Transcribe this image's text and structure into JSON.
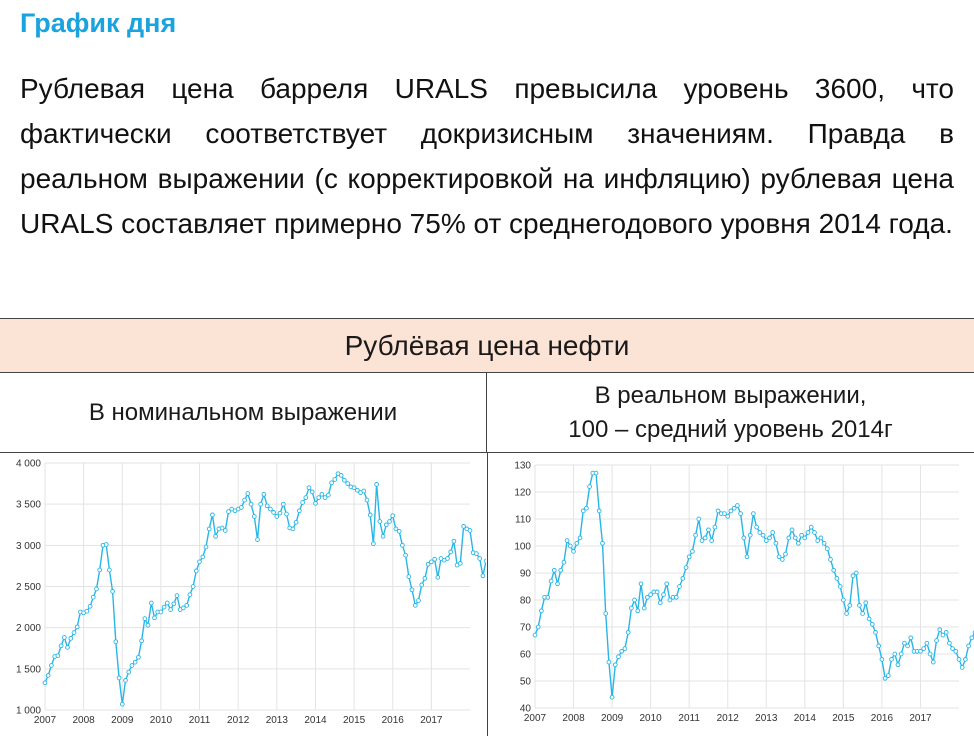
{
  "heading": "График дня",
  "lead": "Рублевая цена барреля URALS превысила уровень 3600, что фактически соответствует докризисным значениям. Правда в реальном выражении (с корректировкой на инфляцию) рублевая цена URALS составляет примерно 75% от среднегодового уровня 2014 года.",
  "table": {
    "title": "Рублёвая цена нефти",
    "left_header": "В номинальном выражении",
    "right_header_line1": "В реальном выражении,",
    "right_header_line2": "100 – средний уровень 2014г"
  },
  "colors": {
    "series": "#29b6e6",
    "grid": "#e3e3e3",
    "heading": "#1aa3dd",
    "table_header_bg": "#fbe3d6"
  },
  "chart_data": [
    {
      "type": "line",
      "ylim": [
        1000,
        4000
      ],
      "yticks": [
        1000,
        1500,
        2000,
        2500,
        3000,
        3500,
        4000
      ],
      "ytick_labels": [
        "1 000",
        "1 500",
        "2 000",
        "2 500",
        "3 000",
        "3 500",
        "4 000"
      ],
      "xlim": [
        2007,
        2018
      ],
      "xticks": [
        2007,
        2008,
        2009,
        2010,
        2011,
        2012,
        2013,
        2014,
        2015,
        2016,
        2017
      ],
      "xtick_labels": [
        "2007",
        "2008",
        "2009",
        "2010",
        "2011",
        "2012",
        "2013",
        "2014",
        "2015",
        "2016",
        "2017"
      ],
      "grid": true,
      "markers": "hollow circles",
      "x_start": "2007-01",
      "step": "month",
      "series": [
        {
          "values": [
            1330,
            1420,
            1540,
            1650,
            1660,
            1780,
            1880,
            1760,
            1870,
            1940,
            2010,
            2190,
            2180,
            2200,
            2260,
            2370,
            2470,
            2700,
            3000,
            3010,
            2700,
            2440,
            1830,
            1390,
            1070,
            1360,
            1460,
            1540,
            1580,
            1640,
            1840,
            2110,
            2030,
            2300,
            2120,
            2190,
            2190,
            2250,
            2300,
            2220,
            2290,
            2390,
            2220,
            2240,
            2270,
            2400,
            2500,
            2690,
            2800,
            2860,
            2980,
            3200,
            3370,
            3110,
            3200,
            3210,
            3180,
            3410,
            3440,
            3420,
            3440,
            3460,
            3550,
            3630,
            3500,
            3350,
            3070,
            3500,
            3620,
            3480,
            3440,
            3400,
            3350,
            3390,
            3500,
            3380,
            3210,
            3200,
            3280,
            3420,
            3520,
            3580,
            3700,
            3650,
            3510,
            3580,
            3620,
            3580,
            3610,
            3760,
            3800,
            3870,
            3850,
            3790,
            3750,
            3710,
            3700,
            3670,
            3640,
            3660,
            3550,
            3370,
            3020,
            3740,
            3290,
            3110,
            3250,
            3290,
            3360,
            3200,
            3170,
            3000,
            2880,
            2620,
            2460,
            2270,
            2330,
            2520,
            2600,
            2770,
            2800,
            2830,
            2610,
            2840,
            2820,
            2840,
            2920,
            3050,
            2760,
            2780,
            3230,
            3200,
            3180,
            2910,
            2900,
            2840,
            2630,
            2810,
            3000,
            3110,
            3200,
            3290,
            3620
          ]
        }
      ]
    },
    {
      "type": "line",
      "ylim": [
        40,
        130
      ],
      "yticks": [
        40,
        50,
        60,
        70,
        80,
        90,
        100,
        110,
        120,
        130
      ],
      "ytick_labels": [
        "40",
        "50",
        "60",
        "70",
        "80",
        "90",
        "100",
        "110",
        "120",
        "130"
      ],
      "xlim": [
        2007,
        2018
      ],
      "xticks": [
        2007,
        2008,
        2009,
        2010,
        2011,
        2012,
        2013,
        2014,
        2015,
        2016,
        2017
      ],
      "xtick_labels": [
        "2007",
        "2008",
        "2009",
        "2010",
        "2011",
        "2012",
        "2013",
        "2014",
        "2015",
        "2016",
        "2017"
      ],
      "grid": true,
      "markers": "hollow circles",
      "x_start": "2007-01",
      "step": "month",
      "series": [
        {
          "values": [
            67,
            70,
            76,
            81,
            81,
            87,
            91,
            86,
            91,
            94,
            102,
            100,
            98,
            101,
            103,
            113,
            114,
            122,
            127,
            127,
            113,
            101,
            75,
            57,
            44,
            56,
            59,
            61,
            62,
            68,
            77,
            80,
            76,
            86,
            77,
            81,
            82,
            83,
            83,
            79,
            82,
            86,
            80,
            81,
            81,
            85,
            88,
            92,
            96,
            98,
            104,
            110,
            102,
            103,
            106,
            102,
            107,
            113,
            112,
            112,
            111,
            113,
            114,
            115,
            112,
            103,
            96,
            104,
            112,
            107,
            105,
            104,
            102,
            103,
            105,
            101,
            96,
            95,
            97,
            103,
            106,
            103,
            101,
            104,
            103,
            105,
            107,
            105,
            102,
            103,
            101,
            99,
            95,
            91,
            88,
            85,
            80,
            75,
            78,
            89,
            90,
            78,
            75,
            79,
            73,
            71,
            68,
            63,
            58,
            51,
            52,
            58,
            60,
            56,
            60,
            64,
            63,
            66,
            61,
            61,
            61,
            62,
            64,
            60,
            57,
            65,
            69,
            67,
            68,
            64,
            62,
            61,
            58,
            55,
            58,
            63,
            66,
            68,
            70,
            76
          ]
        }
      ]
    }
  ]
}
